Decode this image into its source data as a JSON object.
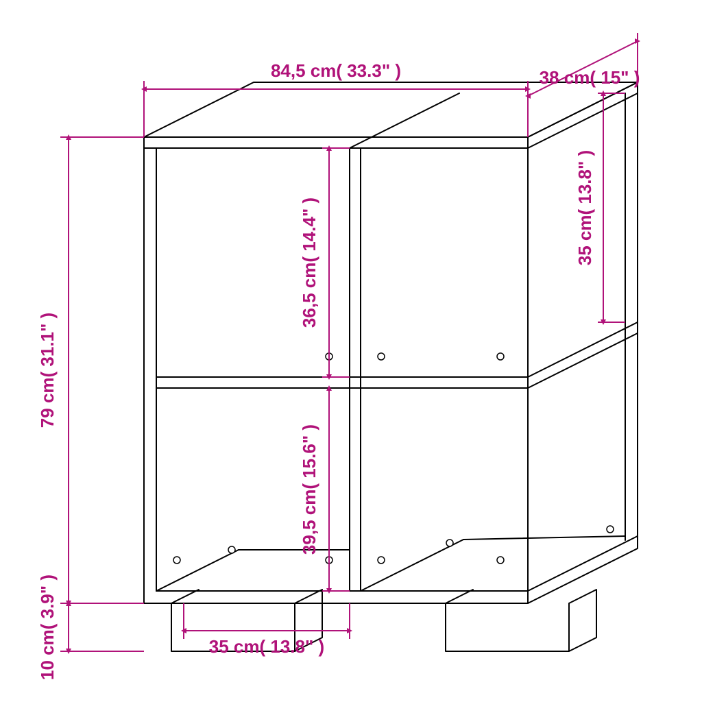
{
  "colors": {
    "dimension": "#b01279",
    "outline": "#000000",
    "background": "#ffffff"
  },
  "dimensions": {
    "width": {
      "cm": "84,5 cm",
      "in": "33.3\""
    },
    "depth": {
      "cm": "38 cm",
      "in": "15\""
    },
    "height": {
      "cm": "79 cm",
      "in": "31.1\""
    },
    "leg_height": {
      "cm": "10 cm",
      "in": "3.9\""
    },
    "shelf_upper": {
      "cm": "36,5 cm",
      "in": "14.4\""
    },
    "shelf_lower": {
      "cm": "39,5 cm",
      "in": "15.6\""
    },
    "shelf_right": {
      "cm": "35 cm",
      "in": "13.8\""
    },
    "shelf_width": {
      "cm": "35 cm",
      "in": "13.8\""
    }
  },
  "arrow": {
    "size": 14
  }
}
